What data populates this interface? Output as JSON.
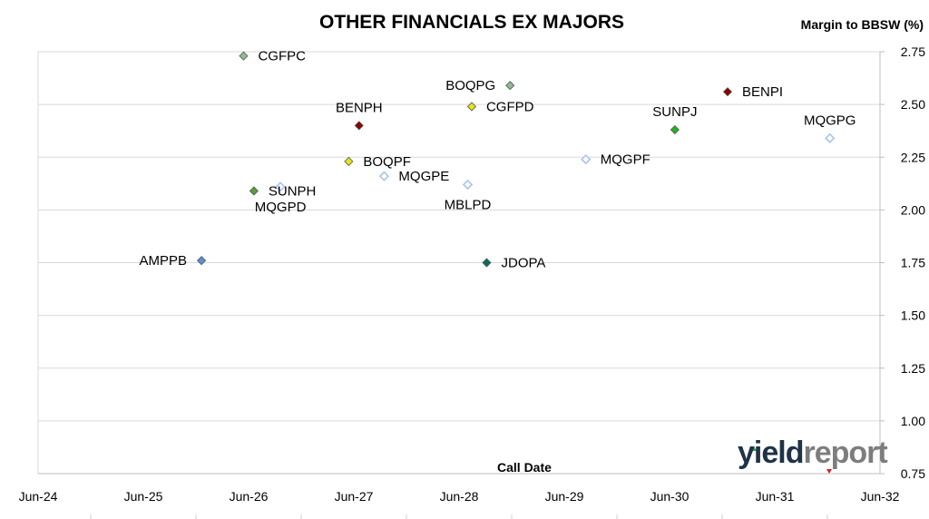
{
  "chart_data": {
    "type": "scatter",
    "title": "OTHER FINANCIALS EX MAJORS",
    "xlabel": "Call Date",
    "ylabel": "Margin to BBSW (%)",
    "xlim": [
      "2024-06-01",
      "2032-06-01"
    ],
    "ylim": [
      0.75,
      2.75
    ],
    "x_tick_labels": [
      "Jun-24",
      "Jun-25",
      "Jun-26",
      "Jun-27",
      "Jun-28",
      "Jun-29",
      "Jun-30",
      "Jun-31",
      "Jun-32"
    ],
    "y_tick_labels": [
      "0.75",
      "1.00",
      "1.25",
      "1.50",
      "1.75",
      "2.00",
      "2.25",
      "2.50",
      "2.75"
    ],
    "grid": true,
    "points": [
      {
        "label": "CGFPC",
        "x": "2026-05-15",
        "y": 2.73,
        "color": "#8fbc8f",
        "filled": true,
        "label_pos": "right"
      },
      {
        "label": "BOQPG",
        "x": "2028-11-25",
        "y": 2.59,
        "color": "#8fbc8f",
        "filled": true,
        "label_pos": "left"
      },
      {
        "label": "BENPI",
        "x": "2030-12-20",
        "y": 2.56,
        "color": "#8b0000",
        "filled": true,
        "label_pos": "right"
      },
      {
        "label": "CGFPD",
        "x": "2028-07-15",
        "y": 2.49,
        "color": "#e5e51a",
        "filled": true,
        "label_pos": "right"
      },
      {
        "label": "BENPH",
        "x": "2027-06-20",
        "y": 2.4,
        "color": "#8b0000",
        "filled": true,
        "label_pos": "above"
      },
      {
        "label": "SUNPJ",
        "x": "2030-06-20",
        "y": 2.38,
        "color": "#22b322",
        "filled": true,
        "label_pos": "above"
      },
      {
        "label": "MQGPG",
        "x": "2031-12-10",
        "y": 2.34,
        "color": "#aac4e8",
        "filled": false,
        "label_pos": "above"
      },
      {
        "label": "MQGPF",
        "x": "2029-08-15",
        "y": 2.24,
        "color": "#aac4e8",
        "filled": false,
        "label_pos": "right"
      },
      {
        "label": "BOQPF",
        "x": "2027-05-15",
        "y": 2.23,
        "color": "#e5e51a",
        "filled": true,
        "label_pos": "right"
      },
      {
        "label": "MQGPE",
        "x": "2027-09-15",
        "y": 2.16,
        "color": "#aac4e8",
        "filled": false,
        "label_pos": "right"
      },
      {
        "label": "MBLPD",
        "x": "2028-07-01",
        "y": 2.12,
        "color": "#aac4e8",
        "filled": false,
        "label_pos": "below"
      },
      {
        "label": "MQGPD",
        "x": "2026-09-20",
        "y": 2.11,
        "color": "#aac4e8",
        "filled": false,
        "label_pos": "below"
      },
      {
        "label": "SUNPH",
        "x": "2026-06-20",
        "y": 2.09,
        "color": "#5a9e3a",
        "filled": true,
        "label_pos": "right"
      },
      {
        "label": "AMPPB",
        "x": "2025-12-20",
        "y": 1.76,
        "color": "#5b8fd6",
        "filled": true,
        "label_pos": "left"
      },
      {
        "label": "JDOPA",
        "x": "2028-09-05",
        "y": 1.75,
        "color": "#0d6b5a",
        "filled": true,
        "label_pos": "right"
      }
    ]
  },
  "logo": {
    "part_a": "yield",
    "part_b": "report"
  }
}
